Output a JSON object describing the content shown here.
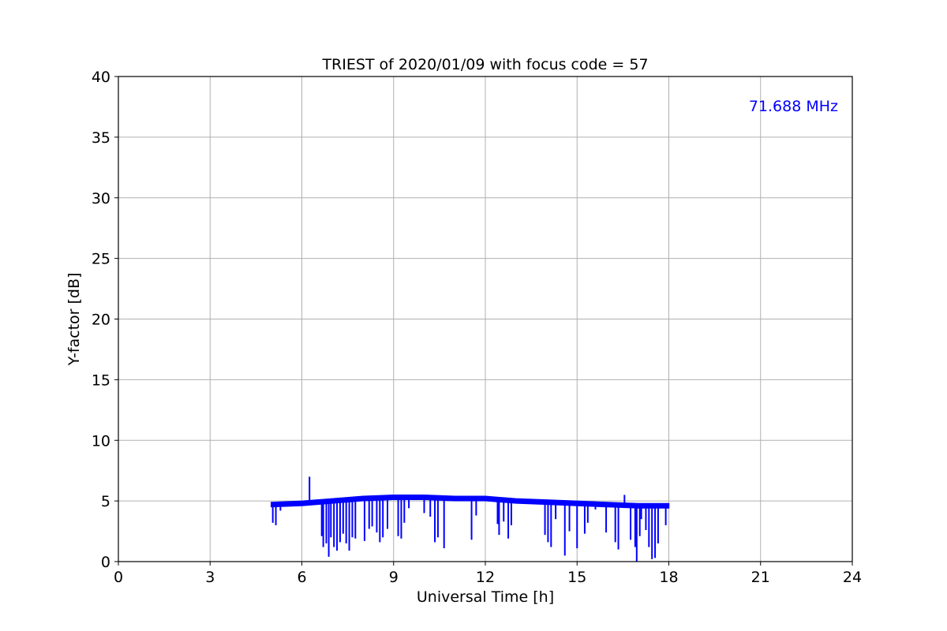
{
  "chart_data": {
    "type": "line",
    "title": "TRIEST of 2020/01/09 with focus code = 57",
    "xlabel": "Universal Time [h]",
    "ylabel": "Y-factor [dB]",
    "xlim": [
      0,
      24
    ],
    "ylim": [
      0,
      40
    ],
    "xticks": [
      0,
      3,
      6,
      9,
      12,
      15,
      18,
      21,
      24
    ],
    "yticks": [
      0,
      5,
      10,
      15,
      20,
      25,
      30,
      35,
      40
    ],
    "grid": true,
    "annotation": {
      "text": "71.688 MHz",
      "color": "#0000ff",
      "placement": "top-right"
    },
    "series": [
      {
        "color": "#0000ff",
        "baseline": [
          [
            5.0,
            4.7
          ],
          [
            6.0,
            4.8
          ],
          [
            7.0,
            5.0
          ],
          [
            8.0,
            5.2
          ],
          [
            9.0,
            5.3
          ],
          [
            10.0,
            5.3
          ],
          [
            11.0,
            5.2
          ],
          [
            12.0,
            5.2
          ],
          [
            13.0,
            5.0
          ],
          [
            14.0,
            4.9
          ],
          [
            15.0,
            4.8
          ],
          [
            16.0,
            4.7
          ],
          [
            17.0,
            4.6
          ],
          [
            18.0,
            4.6
          ]
        ],
        "dips": [
          [
            5.05,
            3.2
          ],
          [
            5.15,
            3.0
          ],
          [
            5.3,
            4.2
          ],
          [
            6.25,
            7.0
          ],
          [
            6.65,
            2.1
          ],
          [
            6.7,
            1.2
          ],
          [
            6.8,
            1.5
          ],
          [
            6.88,
            0.4
          ],
          [
            6.95,
            2.0
          ],
          [
            7.05,
            1.2
          ],
          [
            7.15,
            0.9
          ],
          [
            7.25,
            1.6
          ],
          [
            7.35,
            2.3
          ],
          [
            7.45,
            1.5
          ],
          [
            7.55,
            0.9
          ],
          [
            7.65,
            2.0
          ],
          [
            7.75,
            1.9
          ],
          [
            8.05,
            1.7
          ],
          [
            8.2,
            2.7
          ],
          [
            8.3,
            2.9
          ],
          [
            8.45,
            2.4
          ],
          [
            8.55,
            1.6
          ],
          [
            8.65,
            2.0
          ],
          [
            8.8,
            2.7
          ],
          [
            9.15,
            2.1
          ],
          [
            9.25,
            1.9
          ],
          [
            9.35,
            3.2
          ],
          [
            9.5,
            4.4
          ],
          [
            10.0,
            4.0
          ],
          [
            10.2,
            3.7
          ],
          [
            10.35,
            1.6
          ],
          [
            10.45,
            2.0
          ],
          [
            10.65,
            1.1
          ],
          [
            11.55,
            1.8
          ],
          [
            11.7,
            3.8
          ],
          [
            12.4,
            3.1
          ],
          [
            12.45,
            2.2
          ],
          [
            12.6,
            3.3
          ],
          [
            12.75,
            1.9
          ],
          [
            12.85,
            3.0
          ],
          [
            13.95,
            2.2
          ],
          [
            14.05,
            1.6
          ],
          [
            14.15,
            1.2
          ],
          [
            14.3,
            3.5
          ],
          [
            14.6,
            0.5
          ],
          [
            14.75,
            2.5
          ],
          [
            15.0,
            1.1
          ],
          [
            15.25,
            2.3
          ],
          [
            15.35,
            3.2
          ],
          [
            15.6,
            4.3
          ],
          [
            15.95,
            2.4
          ],
          [
            16.25,
            1.6
          ],
          [
            16.35,
            1.0
          ],
          [
            16.55,
            5.5
          ],
          [
            16.75,
            1.8
          ],
          [
            16.9,
            1.2
          ],
          [
            16.95,
            0.0
          ],
          [
            17.05,
            2.1
          ],
          [
            17.1,
            3.5
          ],
          [
            17.25,
            2.6
          ],
          [
            17.35,
            1.2
          ],
          [
            17.45,
            0.2
          ],
          [
            17.55,
            0.3
          ],
          [
            17.65,
            1.5
          ],
          [
            17.9,
            3.0
          ]
        ]
      }
    ]
  }
}
